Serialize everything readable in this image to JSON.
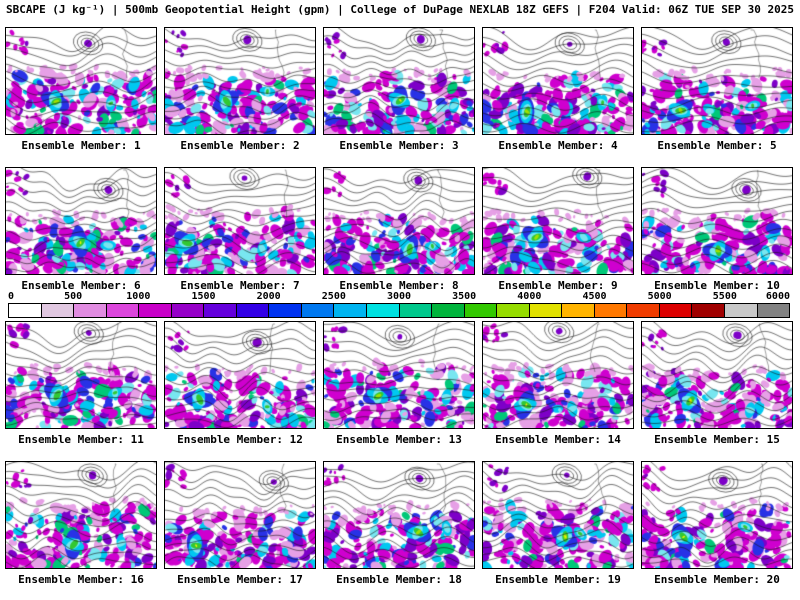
{
  "header": {
    "title": "SBCAPE (J kg⁻¹) | 500mb Geopotential Height (gpm) | College of DuPage NEXLAB 18Z GEFS | F204 Valid: 06Z TUE SEP 30 2025"
  },
  "ensemble_members": [
    "Ensemble Member: 1",
    "Ensemble Member: 2",
    "Ensemble Member: 3",
    "Ensemble Member: 4",
    "Ensemble Member: 5",
    "Ensemble Member: 6",
    "Ensemble Member: 7",
    "Ensemble Member: 8",
    "Ensemble Member: 9",
    "Ensemble Member: 10",
    "Ensemble Member: 11",
    "Ensemble Member: 12",
    "Ensemble Member: 13",
    "Ensemble Member: 14",
    "Ensemble Member: 15",
    "Ensemble Member: 16",
    "Ensemble Member: 17",
    "Ensemble Member: 18",
    "Ensemble Member: 19",
    "Ensemble Member: 20"
  ],
  "colorbar": {
    "min": 0,
    "max": 6000,
    "ticks": [
      0,
      500,
      1000,
      1500,
      2000,
      2500,
      3000,
      3500,
      4000,
      4500,
      5000,
      5500,
      6000
    ],
    "segment_colors": [
      "#ffffff",
      "#e1c8e1",
      "#e18ce1",
      "#dc46dc",
      "#c800c8",
      "#9600c8",
      "#6400dc",
      "#3200e6",
      "#0032f0",
      "#0078f0",
      "#00b4f0",
      "#00e1e1",
      "#00c88c",
      "#00b43c",
      "#32c800",
      "#96dc00",
      "#e1e100",
      "#ffb400",
      "#ff7800",
      "#f03c00",
      "#dc0000",
      "#a00000",
      "#c8c8c8",
      "#828282"
    ]
  },
  "map_palette": {
    "magenta": "#cf00cf",
    "light_pink": "#e6a0e6",
    "purple": "#7d00c8",
    "cyan": "#00c8f0",
    "pale_cyan": "#78e6f0",
    "blue": "#2832e6",
    "teal_green": "#00c878",
    "green": "#32c832",
    "yellow_green": "#a0e000",
    "yellow": "#f2f200",
    "contour": "#1a1a1a"
  }
}
